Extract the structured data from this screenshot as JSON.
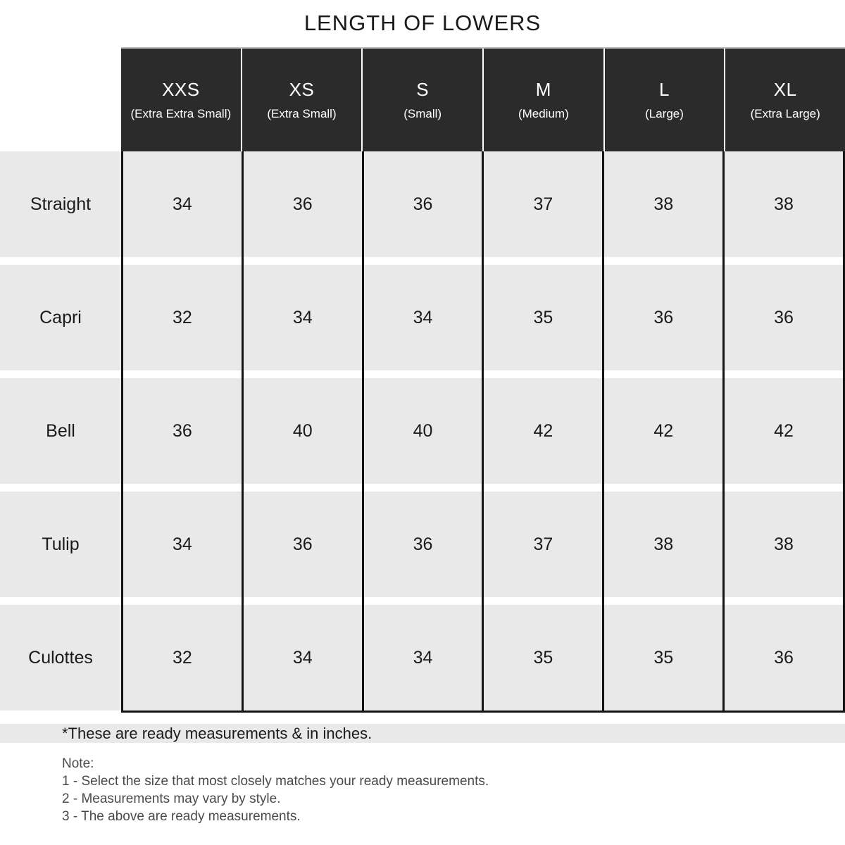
{
  "title": "LENGTH OF LOWERS",
  "table": {
    "columns": [
      {
        "size": "XXS",
        "full": "(Extra Extra Small)"
      },
      {
        "size": "XS",
        "full": "(Extra Small)"
      },
      {
        "size": "S",
        "full": "(Small)"
      },
      {
        "size": "M",
        "full": "(Medium)"
      },
      {
        "size": "L",
        "full": "(Large)"
      },
      {
        "size": "XL",
        "full": "(Extra Large)"
      }
    ],
    "rows": [
      {
        "label": "Straight",
        "values": [
          "34",
          "36",
          "36",
          "37",
          "38",
          "38"
        ]
      },
      {
        "label": "Capri",
        "values": [
          "32",
          "34",
          "34",
          "35",
          "36",
          "36"
        ]
      },
      {
        "label": "Bell",
        "values": [
          "36",
          "40",
          "40",
          "42",
          "42",
          "42"
        ]
      },
      {
        "label": "Tulip",
        "values": [
          "34",
          "36",
          "36",
          "37",
          "38",
          "38"
        ]
      },
      {
        "label": "Culottes",
        "values": [
          "32",
          "34",
          "34",
          "35",
          "35",
          "36"
        ]
      }
    ]
  },
  "footnote": "*These are ready measurements & in inches.",
  "note": {
    "heading": "Note:",
    "items": [
      "1 - Select the size that most closely matches your ready measurements.",
      "2 - Measurements may vary by style.",
      "3 - The above are ready measurements."
    ]
  },
  "colors": {
    "header_bg": "#2b2b2b",
    "row_bg": "#e9e9e9",
    "grid_line": "#141414",
    "note_text": "#4a4a4a"
  },
  "chart_data": {
    "type": "table",
    "title": "LENGTH OF LOWERS",
    "unit": "inches",
    "columns": [
      "XXS (Extra Extra Small)",
      "XS (Extra Small)",
      "S (Small)",
      "M (Medium)",
      "L (Large)",
      "XL (Extra Large)"
    ],
    "rows": [
      {
        "style": "Straight",
        "values": [
          34,
          36,
          36,
          37,
          38,
          38
        ]
      },
      {
        "style": "Capri",
        "values": [
          32,
          34,
          34,
          35,
          36,
          36
        ]
      },
      {
        "style": "Bell",
        "values": [
          36,
          40,
          40,
          42,
          42,
          42
        ]
      },
      {
        "style": "Tulip",
        "values": [
          34,
          36,
          36,
          37,
          38,
          38
        ]
      },
      {
        "style": "Culottes",
        "values": [
          32,
          34,
          34,
          35,
          35,
          36
        ]
      }
    ]
  }
}
